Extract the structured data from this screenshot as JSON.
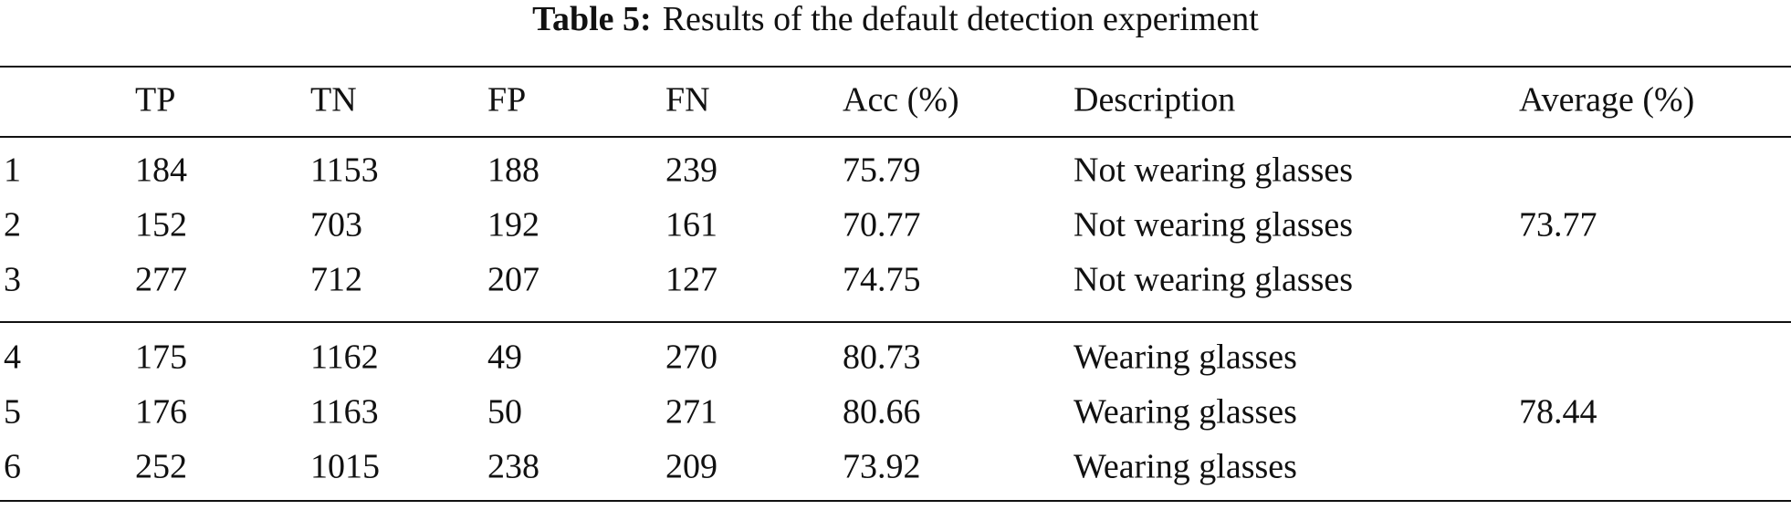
{
  "table": {
    "caption": {
      "label": "Table 5:",
      "text": "Results of the default detection experiment"
    },
    "header": [
      "TP",
      "TN",
      "FP",
      "FN",
      "Acc (%)",
      "Description",
      "Average (%)"
    ],
    "groups": [
      {
        "rows": [
          [
            1,
            184,
            1153,
            188,
            239,
            75.79,
            "Not wearing glasses"
          ],
          [
            2,
            152,
            703,
            192,
            161,
            70.77,
            "Not wearing glasses"
          ],
          [
            3,
            277,
            712,
            207,
            127,
            74.75,
            "Not wearing glasses"
          ]
        ],
        "average": 73.77
      },
      {
        "rows": [
          [
            4,
            175,
            1162,
            49,
            270,
            80.73,
            "Wearing glasses"
          ],
          [
            5,
            176,
            1163,
            50,
            271,
            80.66,
            "Wearing glasses"
          ],
          [
            6,
            252,
            1015,
            238,
            209,
            73.92,
            "Wearing glasses"
          ]
        ],
        "average": 78.44
      }
    ]
  }
}
